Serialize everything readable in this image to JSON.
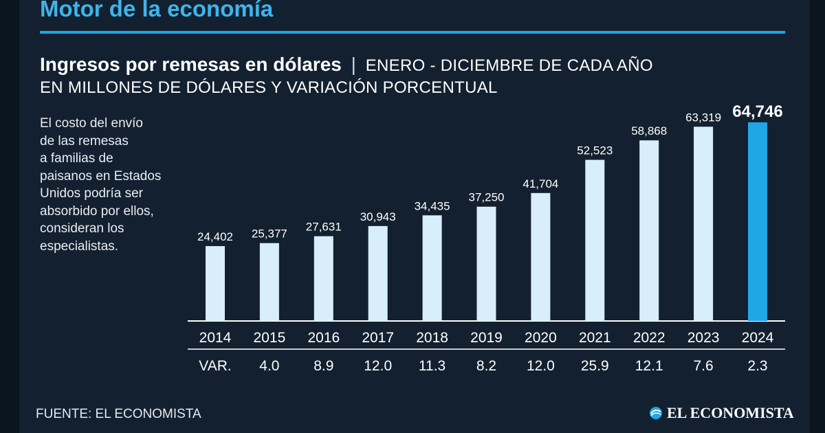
{
  "header": {
    "title": "Motor de la economía"
  },
  "chart_header": {
    "title_bold": "Ingresos por remesas en dólares",
    "separator": "|",
    "subtitle_line1": "ENERO - DICIEMBRE DE CADA AÑO",
    "subtitle_line2": "EN MILLONES DE DÓLARES Y VARIACIÓN PORCENTUAL"
  },
  "side_note": {
    "lines": [
      "El costo del envío",
      "de las remesas",
      "a familias de",
      "paisanos en Estados",
      "Unidos podría ser",
      "absorbido por ellos,",
      "consideran los",
      "especialistas."
    ]
  },
  "chart_data": {
    "type": "bar",
    "title": "Ingresos por remesas en dólares",
    "categories": [
      "2014",
      "2015",
      "2016",
      "2017",
      "2018",
      "2019",
      "2020",
      "2021",
      "2022",
      "2023",
      "2024"
    ],
    "values": [
      24402,
      25377,
      27631,
      30943,
      34435,
      37250,
      41704,
      52523,
      58868,
      63319,
      64746
    ],
    "value_labels": [
      "24,402",
      "25,377",
      "27,631",
      "30,943",
      "34,435",
      "37,250",
      "41,704",
      "52,523",
      "58,868",
      "63,319",
      "64,746"
    ],
    "variation_label": "VAR.",
    "variation": [
      "4.0",
      "8.9",
      "12.0",
      "11.3",
      "8.2",
      "12.0",
      "25.9",
      "12.1",
      "7.6",
      "2.3"
    ],
    "highlight_index": 10,
    "colors": {
      "bar": "#d9eefb",
      "highlight": "#1ea7e4",
      "axis": "#ffffff"
    },
    "ylim": [
      0,
      64746
    ]
  },
  "footer": {
    "source": "FUENTE: EL ECONOMISTA",
    "brand": "EL ECONOMISTA"
  },
  "colors": {
    "background": "#13202f",
    "accent": "#1ea7e4",
    "title_accent": "#3fb4ea"
  },
  "icons": {
    "brand": "swirl-logo-icon"
  }
}
